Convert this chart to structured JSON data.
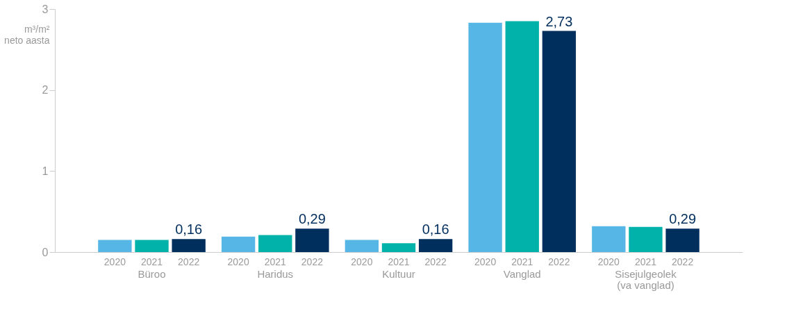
{
  "chart_data": {
    "type": "bar",
    "ylabel": "m³/m²\nneto aasta",
    "categories": [
      "Büroo",
      "Haridus",
      "Kultuur",
      "Vanglad",
      "Sisejulgeolek\n(va vanglad)"
    ],
    "series": [
      {
        "name": "2020",
        "color": "#56b6e5",
        "values": [
          0.15,
          0.19,
          0.15,
          2.83,
          0.32
        ]
      },
      {
        "name": "2021",
        "color": "#00b2a9",
        "values": [
          0.15,
          0.21,
          0.11,
          2.85,
          0.31
        ]
      },
      {
        "name": "2022",
        "color": "#002e5d",
        "values": [
          0.16,
          0.29,
          0.16,
          2.73,
          0.29
        ],
        "value_labels": [
          "0,16",
          "0,29",
          "0,16",
          "2,73",
          "0,29"
        ]
      }
    ],
    "ylim": [
      0,
      3
    ],
    "yticks": [
      0,
      1,
      2,
      3
    ],
    "grid": false,
    "legend": false
  }
}
